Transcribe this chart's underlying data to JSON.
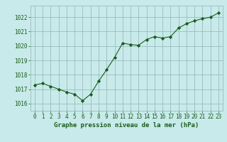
{
  "x": [
    0,
    1,
    2,
    3,
    4,
    5,
    6,
    7,
    8,
    9,
    10,
    11,
    12,
    13,
    14,
    15,
    16,
    17,
    18,
    19,
    20,
    21,
    22,
    23
  ],
  "y": [
    1017.3,
    1017.4,
    1017.2,
    1017.0,
    1016.8,
    1016.65,
    1016.2,
    1016.65,
    1017.55,
    1018.35,
    1019.2,
    1020.2,
    1020.1,
    1020.05,
    1020.45,
    1020.65,
    1020.55,
    1020.65,
    1021.25,
    1021.55,
    1021.75,
    1021.9,
    1022.0,
    1022.3
  ],
  "line_color": "#1a5c1a",
  "marker": "D",
  "marker_size": 2.2,
  "bg_color": "#c8eaea",
  "grid_color": "#9abcbc",
  "ylim": [
    1015.5,
    1022.8
  ],
  "yticks": [
    1016,
    1017,
    1018,
    1019,
    1020,
    1021,
    1022
  ],
  "xticks": [
    0,
    1,
    2,
    3,
    4,
    5,
    6,
    7,
    8,
    9,
    10,
    11,
    12,
    13,
    14,
    15,
    16,
    17,
    18,
    19,
    20,
    21,
    22,
    23
  ],
  "xlabel": "Graphe pression niveau de la mer (hPa)",
  "xlabel_color": "#1a5c1a",
  "tick_color": "#1a5c1a",
  "axis_label_fontsize": 6.5,
  "tick_fontsize": 5.5
}
